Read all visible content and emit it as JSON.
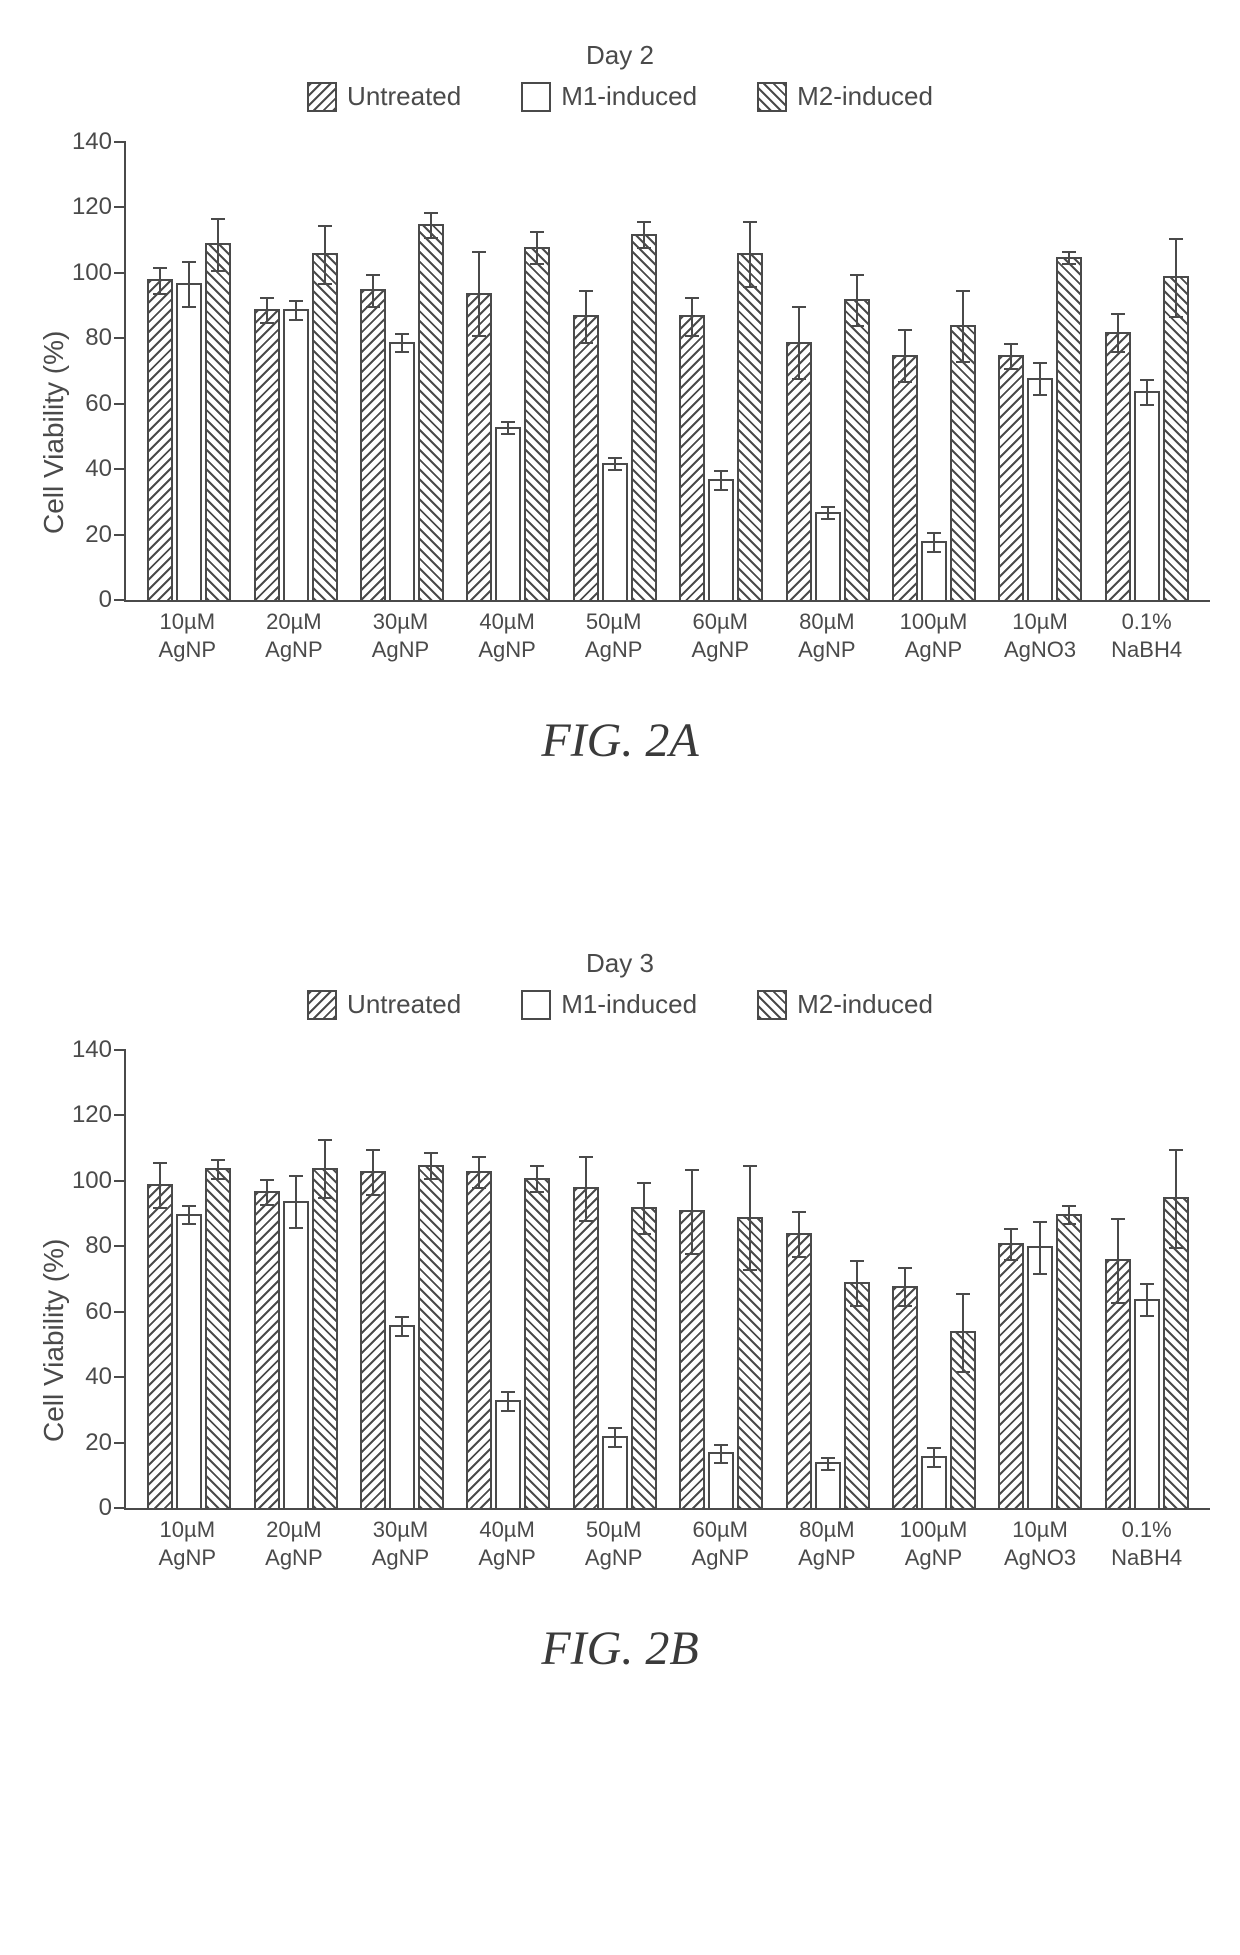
{
  "global": {
    "yLabel": "Cell Viability (%)",
    "yMax": 140,
    "yTickStep": 20,
    "barColors": {
      "untreated": "hatch-bw",
      "m1": "hatch-none",
      "m2": "hatch-fw"
    },
    "borderColor": "#4a4a4a",
    "background": "#ffffff",
    "textColor": "#4a4a4a",
    "legend": [
      {
        "label": "Untreated",
        "swatch": "hatch-bw"
      },
      {
        "label": "M1-induced",
        "swatch": "hatch-none"
      },
      {
        "label": "M2-induced",
        "swatch": "hatch-fw"
      }
    ],
    "categories": [
      {
        "line1": "10µM",
        "line2": "AgNP"
      },
      {
        "line1": "20µM",
        "line2": "AgNP"
      },
      {
        "line1": "30µM",
        "line2": "AgNP"
      },
      {
        "line1": "40µM",
        "line2": "AgNP"
      },
      {
        "line1": "50µM",
        "line2": "AgNP"
      },
      {
        "line1": "60µM",
        "line2": "AgNP"
      },
      {
        "line1": "80µM",
        "line2": "AgNP"
      },
      {
        "line1": "100µM",
        "line2": "AgNP"
      },
      {
        "line1": "10µM",
        "line2": "AgNO3"
      },
      {
        "line1": "0.1%",
        "line2": "NaBH4"
      }
    ]
  },
  "figures": [
    {
      "title": "Day 2",
      "caption": "FIG. 2A",
      "series": [
        {
          "untreated": {
            "v": 98,
            "e": 4
          },
          "m1": {
            "v": 97,
            "e": 7
          },
          "m2": {
            "v": 109,
            "e": 8
          }
        },
        {
          "untreated": {
            "v": 89,
            "e": 4
          },
          "m1": {
            "v": 89,
            "e": 3
          },
          "m2": {
            "v": 106,
            "e": 9
          }
        },
        {
          "untreated": {
            "v": 95,
            "e": 5
          },
          "m1": {
            "v": 79,
            "e": 3
          },
          "m2": {
            "v": 115,
            "e": 4
          }
        },
        {
          "untreated": {
            "v": 94,
            "e": 13
          },
          "m1": {
            "v": 53,
            "e": 2
          },
          "m2": {
            "v": 108,
            "e": 5
          }
        },
        {
          "untreated": {
            "v": 87,
            "e": 8
          },
          "m1": {
            "v": 42,
            "e": 2
          },
          "m2": {
            "v": 112,
            "e": 4
          }
        },
        {
          "untreated": {
            "v": 87,
            "e": 6
          },
          "m1": {
            "v": 37,
            "e": 3
          },
          "m2": {
            "v": 106,
            "e": 10
          }
        },
        {
          "untreated": {
            "v": 79,
            "e": 11
          },
          "m1": {
            "v": 27,
            "e": 2
          },
          "m2": {
            "v": 92,
            "e": 8
          }
        },
        {
          "untreated": {
            "v": 75,
            "e": 8
          },
          "m1": {
            "v": 18,
            "e": 3
          },
          "m2": {
            "v": 84,
            "e": 11
          }
        },
        {
          "untreated": {
            "v": 75,
            "e": 4
          },
          "m1": {
            "v": 68,
            "e": 5
          },
          "m2": {
            "v": 105,
            "e": 2
          }
        },
        {
          "untreated": {
            "v": 82,
            "e": 6
          },
          "m1": {
            "v": 64,
            "e": 4
          },
          "m2": {
            "v": 99,
            "e": 12
          }
        }
      ]
    },
    {
      "title": "Day 3",
      "caption": "FIG. 2B",
      "series": [
        {
          "untreated": {
            "v": 99,
            "e": 7
          },
          "m1": {
            "v": 90,
            "e": 3
          },
          "m2": {
            "v": 104,
            "e": 3
          }
        },
        {
          "untreated": {
            "v": 97,
            "e": 4
          },
          "m1": {
            "v": 94,
            "e": 8
          },
          "m2": {
            "v": 104,
            "e": 9
          }
        },
        {
          "untreated": {
            "v": 103,
            "e": 7
          },
          "m1": {
            "v": 56,
            "e": 3
          },
          "m2": {
            "v": 105,
            "e": 4
          }
        },
        {
          "untreated": {
            "v": 103,
            "e": 5
          },
          "m1": {
            "v": 33,
            "e": 3
          },
          "m2": {
            "v": 101,
            "e": 4
          }
        },
        {
          "untreated": {
            "v": 98,
            "e": 10
          },
          "m1": {
            "v": 22,
            "e": 3
          },
          "m2": {
            "v": 92,
            "e": 8
          }
        },
        {
          "untreated": {
            "v": 91,
            "e": 13
          },
          "m1": {
            "v": 17,
            "e": 3
          },
          "m2": {
            "v": 89,
            "e": 16
          }
        },
        {
          "untreated": {
            "v": 84,
            "e": 7
          },
          "m1": {
            "v": 14,
            "e": 2
          },
          "m2": {
            "v": 69,
            "e": 7
          }
        },
        {
          "untreated": {
            "v": 68,
            "e": 6
          },
          "m1": {
            "v": 16,
            "e": 3
          },
          "m2": {
            "v": 54,
            "e": 12
          }
        },
        {
          "untreated": {
            "v": 81,
            "e": 5
          },
          "m1": {
            "v": 80,
            "e": 8
          },
          "m2": {
            "v": 90,
            "e": 3
          }
        },
        {
          "untreated": {
            "v": 76,
            "e": 13
          },
          "m1": {
            "v": 64,
            "e": 5
          },
          "m2": {
            "v": 95,
            "e": 15
          }
        }
      ]
    }
  ]
}
